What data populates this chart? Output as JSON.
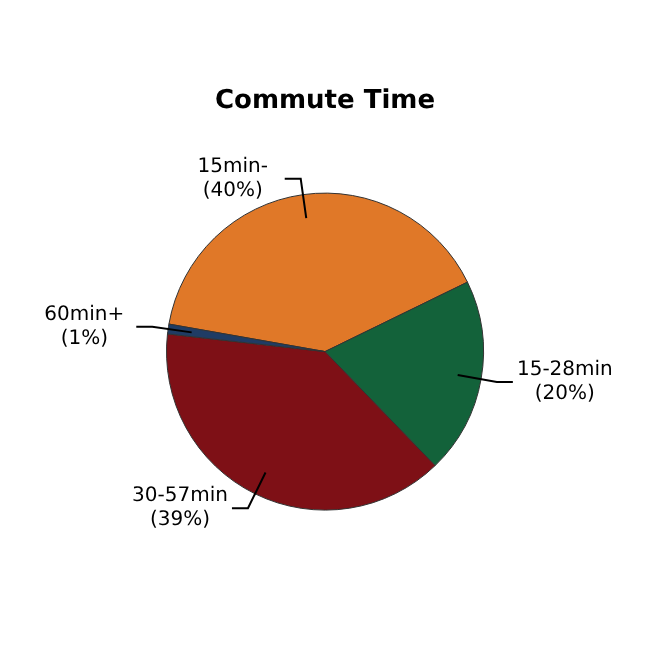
{
  "chart_data": {
    "type": "pie",
    "title": "Commute Time",
    "categories": [
      "15min-",
      "15-28min",
      "30-57min",
      "60min+"
    ],
    "values": [
      40,
      20,
      39,
      1
    ],
    "value_labels": [
      "(40%)",
      "(20%)",
      "(39%)",
      "(1%)"
    ],
    "colors": [
      "#e07828",
      "#13623a",
      "#7e1016",
      "#1f3c64"
    ],
    "legend": false
  }
}
